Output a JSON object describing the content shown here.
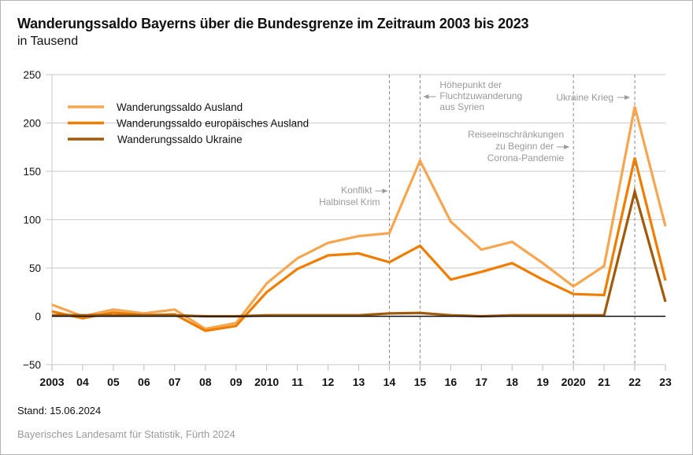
{
  "header": {
    "title": "Wanderungssaldo Bayerns über die Bundesgrenze im Zeitraum 2003 bis 2023",
    "subtitle": "in Tausend"
  },
  "footer": {
    "stand": "Stand: 15.06.2024",
    "source": "Bayerisches Landesamt für Statistik, Fürth 2024"
  },
  "chart_data": {
    "type": "line",
    "title": "Wanderungssaldo Bayerns über die Bundesgrenze im Zeitraum 2003 bis 2023",
    "ylabel": "in Tausend",
    "xlabel": "",
    "x": [
      2003,
      2004,
      2005,
      2006,
      2007,
      2008,
      2009,
      2010,
      2011,
      2012,
      2013,
      2014,
      2015,
      2016,
      2017,
      2018,
      2019,
      2020,
      2021,
      2022,
      2023
    ],
    "xtick_labels": [
      "2003",
      "04",
      "05",
      "06",
      "07",
      "08",
      "09",
      "2010",
      "11",
      "12",
      "13",
      "14",
      "15",
      "16",
      "17",
      "18",
      "19",
      "2020",
      "21",
      "22",
      "23"
    ],
    "ylim": [
      -50,
      250
    ],
    "yticks": [
      -50,
      0,
      50,
      100,
      150,
      200,
      250
    ],
    "ytick_labels": [
      "−50",
      "0",
      "50",
      "100",
      "150",
      "200",
      "250"
    ],
    "grid": true,
    "legend_position": "top-left",
    "series": [
      {
        "name": "Wanderungssaldo Ausland",
        "color": "#f7a650",
        "values": [
          12,
          0,
          7,
          3,
          7,
          -13,
          -7,
          34,
          60,
          76,
          83,
          86,
          161,
          98,
          69,
          77,
          55,
          31,
          52,
          217,
          93
        ]
      },
      {
        "name": "Wanderungssaldo europäisches Ausland",
        "color": "#ef7d00",
        "values": [
          5,
          -2,
          4,
          1,
          2,
          -15,
          -10,
          25,
          49,
          63,
          65,
          56,
          73,
          38,
          46,
          55,
          38,
          23,
          22,
          164,
          37
        ]
      },
      {
        "name": "Wanderungssaldo Ukraine",
        "color": "#a05a0a",
        "values": [
          1,
          1,
          1,
          1,
          1,
          0,
          0,
          1,
          1,
          1,
          1,
          3,
          3.5,
          1,
          0,
          1,
          1,
          1,
          1,
          129,
          15
        ]
      }
    ],
    "annotations": [
      {
        "x": 2014,
        "lines": [
          "Konflikt",
          "Halbinsel Krim"
        ],
        "arrow": "right"
      },
      {
        "x": 2015,
        "lines": [
          "Höhepunkt der",
          "Fluchtzuwanderung",
          "aus Syrien"
        ],
        "arrow": "left"
      },
      {
        "x": 2020,
        "lines": [
          "Reiseeinschränkungen",
          "zu Beginn der",
          "Corona-Pandemie"
        ],
        "arrow": "right"
      },
      {
        "x": 2022,
        "lines": [
          "Ukraine Krieg"
        ],
        "arrow": "right"
      }
    ]
  }
}
